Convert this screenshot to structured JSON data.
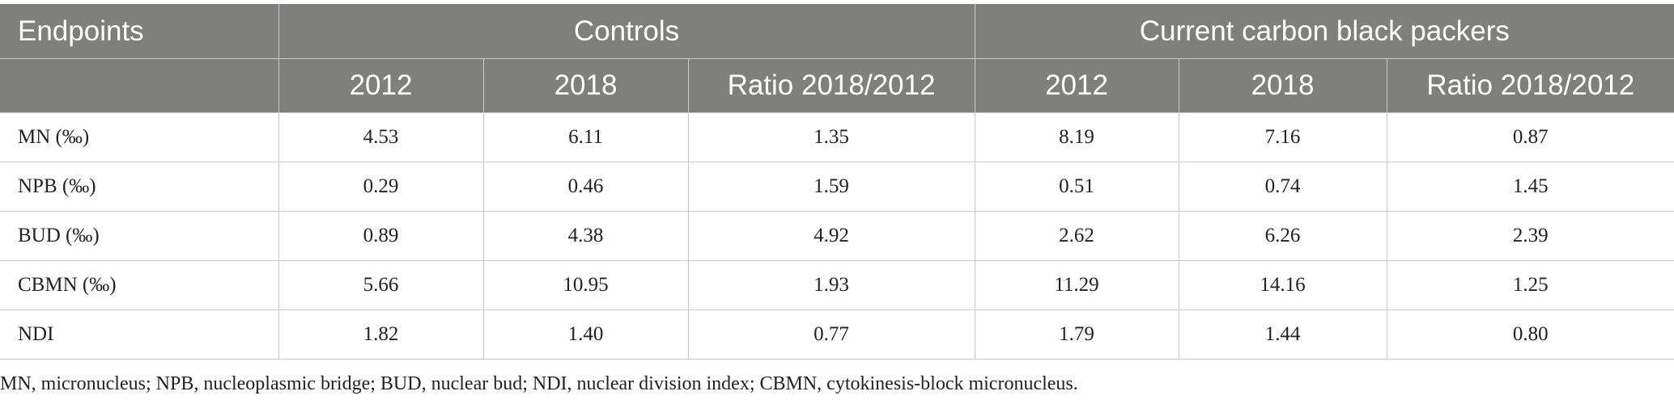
{
  "table": {
    "header_row1": {
      "endpoints_label": "Endpoints",
      "group_controls": "Controls",
      "group_packers": "Current carbon black packers"
    },
    "header_row2": [
      "2012",
      "2018",
      "Ratio 2018/2012",
      "2012",
      "2018",
      "Ratio 2018/2012"
    ],
    "rows": [
      {
        "label": "MN (‰)",
        "cells": [
          "4.53",
          "6.11",
          "1.35",
          "8.19",
          "7.16",
          "0.87"
        ]
      },
      {
        "label": "NPB (‰)",
        "cells": [
          "0.29",
          "0.46",
          "1.59",
          "0.51",
          "0.74",
          "1.45"
        ]
      },
      {
        "label": "BUD (‰)",
        "cells": [
          "0.89",
          "4.38",
          "4.92",
          "2.62",
          "6.26",
          "2.39"
        ]
      },
      {
        "label": "CBMN (‰)",
        "cells": [
          "5.66",
          "10.95",
          "1.93",
          "11.29",
          "14.16",
          "1.25"
        ]
      },
      {
        "label": "NDI",
        "cells": [
          "1.82",
          "1.40",
          "0.77",
          "1.79",
          "1.44",
          "0.80"
        ]
      }
    ]
  },
  "footnote": "MN, micronucleus; NPB, nucleoplasmic bridge; BUD, nuclear bud; NDI, nuclear division index; CBMN, cytokinesis-block micronucleus.",
  "colors": {
    "header_background": "#7f7f7e",
    "header_text": "#ffffff",
    "grid_line": "#c8c8c8"
  }
}
